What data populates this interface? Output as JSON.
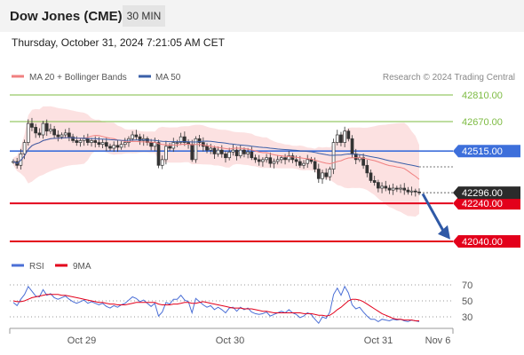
{
  "header": {
    "title": "Dow Jones (CME)",
    "timeframe": "30 MIN"
  },
  "datetime": "Thursday, October 31, 2024 7:21:05 AM CET",
  "attribution": "Research © 2024 Trading Central",
  "colors": {
    "price_axis_blue": "#3d6fdb",
    "support_red": "#e3001b",
    "resistance_green": "#7dbb42",
    "current_price_dark": "#2b2b2b",
    "bollinger_fill": "#f9c8c8",
    "ma20_line": "#f08080",
    "ma50_line": "#3a5fa8",
    "rsi_line": "#4b6fd6",
    "rsi_ma_line": "#e3001b",
    "arrow": "#2f59a6"
  },
  "chart_data": [
    {
      "type": "candlestick",
      "legend": [
        {
          "label": "MA 20 + Bollinger Bands",
          "color": "#f08080"
        },
        {
          "label": "MA 50",
          "color": "#3a5fa8"
        }
      ],
      "x_tick_labels": [
        "Oct 29",
        "Oct 30",
        "Oct 31",
        "Nov 6"
      ],
      "ylim": [
        41980,
        42880
      ],
      "levels": [
        {
          "value": 42810.0,
          "label": "42810.00",
          "kind": "resistance",
          "color": "#7dbb42"
        },
        {
          "value": 42670.0,
          "label": "42670.00",
          "kind": "resistance",
          "color": "#7dbb42"
        },
        {
          "value": 42515.0,
          "label": "42515.00",
          "kind": "pivot",
          "color": "#3d6fdb"
        },
        {
          "value": 42240.0,
          "label": "42240.00",
          "kind": "support",
          "color": "#e3001b"
        },
        {
          "value": 42040.0,
          "label": "42040.00",
          "kind": "support",
          "color": "#e3001b"
        }
      ],
      "current_price": {
        "value": 42296.0,
        "label": "42296.00"
      },
      "forecast_arrow": {
        "from": 42290,
        "to": 42060,
        "direction": "down"
      },
      "price_path": [
        42460,
        42440,
        42500,
        42560,
        42660,
        42640,
        42610,
        42600,
        42660,
        42620,
        42630,
        42600,
        42590,
        42600,
        42610,
        42590,
        42570,
        42560,
        42570,
        42580,
        42560,
        42570,
        42560,
        42550,
        42560,
        42540,
        42530,
        42545,
        42535,
        42550,
        42560,
        42580,
        42600,
        42590,
        42570,
        42580,
        42560,
        42540,
        42560,
        42440,
        42470,
        42540,
        42530,
        42560,
        42560,
        42590,
        42560,
        42550,
        42470,
        42580,
        42560,
        42540,
        42520,
        42530,
        42500,
        42520,
        42500,
        42480,
        42510,
        42520,
        42490,
        42520,
        42500,
        42510,
        42480,
        42470,
        42460,
        42470,
        42480,
        42450,
        42460,
        42470,
        42480,
        42470,
        42490,
        42470,
        42460,
        42440,
        42450,
        42470,
        42460,
        42420,
        42370,
        42400,
        42380,
        42420,
        42560,
        42600,
        42560,
        42620,
        42580,
        42500,
        42470,
        42480,
        42440,
        42400,
        42360,
        42350,
        42320,
        42330,
        42320,
        42310,
        42320,
        42315,
        42320,
        42310,
        42300,
        42305,
        42300,
        42296
      ]
    },
    {
      "type": "line",
      "legend": [
        {
          "label": "RSI",
          "color": "#4b6fd6"
        },
        {
          "label": "9MA",
          "color": "#e3001b"
        }
      ],
      "ylim": [
        22,
        78
      ],
      "yticks": [
        30,
        50,
        70
      ],
      "series": [
        {
          "name": "RSI",
          "values": [
            48,
            44,
            52,
            58,
            68,
            62,
            56,
            55,
            64,
            57,
            59,
            54,
            52,
            54,
            56,
            52,
            49,
            47,
            49,
            51,
            47,
            49,
            47,
            45,
            47,
            43,
            41,
            44,
            42,
            45,
            47,
            51,
            55,
            53,
            49,
            51,
            47,
            43,
            47,
            31,
            36,
            48,
            46,
            52,
            52,
            57,
            51,
            49,
            35,
            53,
            49,
            45,
            42,
            44,
            39,
            42,
            39,
            35,
            41,
            42,
            37,
            42,
            39,
            41,
            36,
            34,
            33,
            34,
            36,
            31,
            33,
            35,
            37,
            35,
            39,
            35,
            33,
            29,
            31,
            35,
            33,
            27,
            22,
            30,
            28,
            36,
            58,
            66,
            57,
            68,
            60,
            45,
            40,
            42,
            36,
            31,
            27,
            27,
            24,
            27,
            26,
            25,
            27,
            26,
            27,
            25,
            24,
            26,
            25,
            24
          ]
        },
        {
          "name": "9MA",
          "values": [
            50,
            49,
            49,
            50,
            52,
            54,
            55,
            56,
            57,
            58,
            58,
            58,
            58,
            57,
            57,
            56,
            55,
            54,
            53,
            52,
            51,
            50,
            49,
            48,
            48,
            47,
            46,
            46,
            45,
            45,
            45,
            46,
            47,
            48,
            48,
            48,
            48,
            48,
            48,
            46,
            45,
            45,
            45,
            46,
            46,
            47,
            48,
            48,
            47,
            47,
            48,
            49,
            48,
            47,
            46,
            45,
            44,
            43,
            42,
            41,
            41,
            41,
            40,
            40,
            40,
            39,
            38,
            37,
            37,
            36,
            35,
            35,
            35,
            35,
            35,
            35,
            35,
            35,
            34,
            34,
            34,
            33,
            32,
            32,
            31,
            32,
            35,
            39,
            42,
            46,
            50,
            52,
            52,
            51,
            49,
            46,
            43,
            40,
            37,
            34,
            32,
            30,
            28,
            27,
            27,
            26,
            26,
            26,
            25,
            25
          ]
        }
      ]
    }
  ]
}
